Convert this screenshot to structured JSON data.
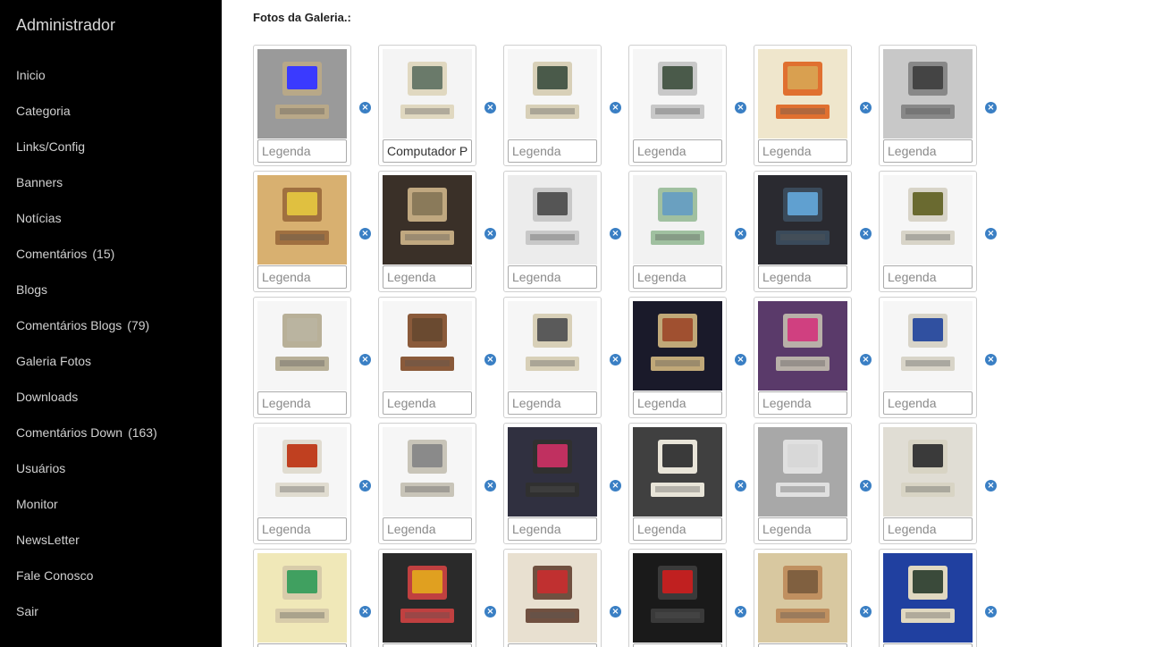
{
  "sidebar": {
    "title": "Administrador",
    "items": [
      {
        "label": "Inicio",
        "count": ""
      },
      {
        "label": "Categoria",
        "count": ""
      },
      {
        "label": "Links/Config",
        "count": ""
      },
      {
        "label": "Banners",
        "count": ""
      },
      {
        "label": "Notícias",
        "count": ""
      },
      {
        "label": "Comentários",
        "count": "(15)"
      },
      {
        "label": "Blogs",
        "count": ""
      },
      {
        "label": "Comentários Blogs",
        "count": "(79)"
      },
      {
        "label": "Galeria Fotos",
        "count": ""
      },
      {
        "label": "Downloads",
        "count": ""
      },
      {
        "label": "Comentários Down",
        "count": "(163)"
      },
      {
        "label": "Usuários",
        "count": ""
      },
      {
        "label": "Monitor",
        "count": ""
      },
      {
        "label": "NewsLetter",
        "count": ""
      },
      {
        "label": "Fale Conosco",
        "count": ""
      },
      {
        "label": "Sair",
        "count": ""
      }
    ]
  },
  "gallery": {
    "title": "Fotos da Galeria.:",
    "caption_placeholder": "Legenda",
    "remove_icon": "remove-circle-icon",
    "photos": [
      {
        "caption": "",
        "bg": "#9a9a9a",
        "screen": "#3a3aff",
        "body": "#b8a888"
      },
      {
        "caption": "Computador Pessoal",
        "bg": "#f4f4f4",
        "screen": "#6a7a6a",
        "body": "#e0d8c0"
      },
      {
        "caption": "",
        "bg": "#f6f6f6",
        "screen": "#4a5a4a",
        "body": "#d8d0b8"
      },
      {
        "caption": "",
        "bg": "#f6f6f6",
        "screen": "#4a5a4a",
        "body": "#c8c8c8"
      },
      {
        "caption": "",
        "bg": "#efe6cc",
        "screen": "#d9a050",
        "body": "#e07030"
      },
      {
        "caption": "",
        "bg": "#c8c8c8",
        "screen": "#444444",
        "body": "#888888"
      },
      {
        "caption": "",
        "bg": "#d8b070",
        "screen": "#e0c040",
        "body": "#a07040"
      },
      {
        "caption": "",
        "bg": "#3a3028",
        "screen": "#8a7a5a",
        "body": "#c0a880"
      },
      {
        "caption": "",
        "bg": "#ececec",
        "screen": "#555555",
        "body": "#c8c8c8"
      },
      {
        "caption": "",
        "bg": "#f2f2f2",
        "screen": "#6aa0c0",
        "body": "#a0c0a0"
      },
      {
        "caption": "",
        "bg": "#2a2a30",
        "screen": "#60a0d0",
        "body": "#3a4a5a"
      },
      {
        "caption": "",
        "bg": "#f6f6f6",
        "screen": "#6a6a30",
        "body": "#d8d4c8"
      },
      {
        "caption": "",
        "bg": "#f6f6f6",
        "screen": "#bab4a0",
        "body": "#b8b098"
      },
      {
        "caption": "",
        "bg": "#f6f6f6",
        "screen": "#6a4a30",
        "body": "#8a5a3a"
      },
      {
        "caption": "",
        "bg": "#f6f6f6",
        "screen": "#5a5a5a",
        "body": "#d8d0b8"
      },
      {
        "caption": "",
        "bg": "#1a1a2a",
        "screen": "#a05030",
        "body": "#c0a878"
      },
      {
        "caption": "",
        "bg": "#5a3a6a",
        "screen": "#d04080",
        "body": "#b8b0a8"
      },
      {
        "caption": "",
        "bg": "#f6f6f6",
        "screen": "#3050a0",
        "body": "#d8d4c8"
      },
      {
        "caption": "",
        "bg": "#f6f6f6",
        "screen": "#c04020",
        "body": "#e0dcd0"
      },
      {
        "caption": "",
        "bg": "#f6f6f6",
        "screen": "#8a8a8a",
        "body": "#c8c4b8"
      },
      {
        "caption": "",
        "bg": "#303040",
        "screen": "#c03060",
        "body": "#303030"
      },
      {
        "caption": "",
        "bg": "#404040",
        "screen": "#3a3a3a",
        "body": "#e8e4d8"
      },
      {
        "caption": "",
        "bg": "#a8a8a8",
        "screen": "#d8d8d8",
        "body": "#e0e0e0"
      },
      {
        "caption": "",
        "bg": "#e0ddd4",
        "screen": "#3a3a3a",
        "body": "#d8d4c4"
      },
      {
        "caption": "",
        "bg": "#f0e8b8",
        "screen": "#40a060",
        "body": "#d8ccaa"
      },
      {
        "caption": "",
        "bg": "#2a2a2a",
        "screen": "#e0a020",
        "body": "#c04040"
      },
      {
        "caption": "",
        "bg": "#e8e0d0",
        "screen": "#c03030",
        "body": "#705040"
      },
      {
        "caption": "",
        "bg": "#1a1a1a",
        "screen": "#c02020",
        "body": "#3a3a3a"
      },
      {
        "caption": "",
        "bg": "#d8c8a0",
        "screen": "#806040",
        "body": "#c09060"
      },
      {
        "caption": "",
        "bg": "#2040a0",
        "screen": "#3a4a3a",
        "body": "#e0d8c0"
      }
    ]
  }
}
